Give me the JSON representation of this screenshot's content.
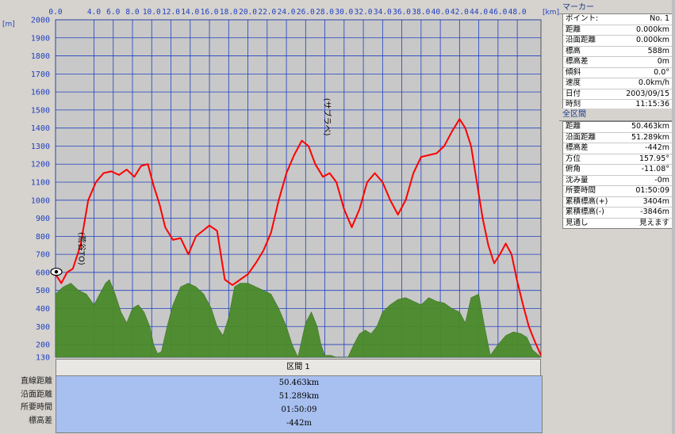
{
  "chart_data": {
    "type": "line",
    "x_unit": "[km]",
    "y_unit": "[m]",
    "x_ticks": [
      "0.0",
      "4.0",
      "6.0",
      "8.0",
      "10.0",
      "12.0",
      "14.0",
      "16.0",
      "18.0",
      "20.0",
      "22.0",
      "24.0",
      "26.0",
      "28.0",
      "30.0",
      "32.0",
      "34.0",
      "36.0",
      "38.0",
      "40.0",
      "42.0",
      "44.0",
      "46.0",
      "48.0"
    ],
    "x_tick_values": [
      0,
      4,
      6,
      8,
      10,
      12,
      14,
      16,
      18,
      20,
      22,
      24,
      26,
      28,
      30,
      32,
      34,
      36,
      38,
      40,
      42,
      44,
      46,
      48
    ],
    "y_ticks": [
      2000,
      1900,
      1800,
      1700,
      1600,
      1500,
      1400,
      1300,
      1200,
      1100,
      1000,
      900,
      800,
      700,
      600,
      500,
      400,
      300,
      200,
      130
    ],
    "xlim": [
      0,
      50.463
    ],
    "ylim": [
      130,
      2000
    ],
    "grid": true,
    "series": [
      {
        "role": "elevation",
        "color": "#ff0000",
        "x": [
          0,
          0.6,
          1.2,
          1.8,
          2.6,
          3.4,
          4.2,
          5.0,
          5.8,
          6.6,
          7.4,
          8.2,
          8.9,
          9.6,
          10.2,
          10.8,
          11.4,
          12.2,
          13.0,
          13.8,
          14.6,
          15.3,
          16.0,
          16.8,
          17.6,
          18.4,
          19.2,
          20.0,
          20.8,
          21.6,
          22.4,
          23.2,
          24.0,
          24.8,
          25.6,
          26.3,
          27.0,
          27.8,
          28.5,
          29.2,
          30.0,
          30.8,
          31.6,
          32.4,
          33.2,
          34.0,
          34.8,
          35.6,
          36.4,
          37.2,
          38.0,
          38.8,
          39.6,
          40.4,
          41.2,
          42.0,
          42.6,
          43.2,
          43.8,
          44.4,
          45.0,
          45.6,
          46.2,
          46.8,
          47.4,
          48.0,
          48.6,
          49.2,
          49.8,
          50.463
        ],
        "y": [
          590,
          540,
          600,
          620,
          750,
          1000,
          1100,
          1150,
          1160,
          1140,
          1170,
          1130,
          1190,
          1200,
          1080,
          980,
          850,
          780,
          790,
          700,
          800,
          830,
          860,
          830,
          560,
          530,
          560,
          590,
          650,
          720,
          820,
          1000,
          1150,
          1250,
          1330,
          1300,
          1200,
          1130,
          1150,
          1100,
          950,
          850,
          950,
          1100,
          1150,
          1100,
          1000,
          920,
          1000,
          1150,
          1240,
          1250,
          1260,
          1300,
          1380,
          1450,
          1400,
          1300,
          1100,
          900,
          750,
          650,
          700,
          760,
          700,
          550,
          420,
          300,
          220,
          140
        ]
      },
      {
        "role": "visibility",
        "color": "#4a8a2a",
        "x": [
          0,
          0.8,
          1.6,
          2.4,
          3.2,
          4.0,
          4.8,
          5.2,
          5.6,
          6.2,
          6.8,
          7.4,
          8.0,
          8.6,
          9.2,
          9.8,
          10.2,
          10.6,
          11.0,
          11.6,
          12.2,
          13.0,
          13.8,
          14.6,
          15.4,
          16.2,
          16.8,
          17.4,
          18.0,
          18.6,
          19.2,
          20.0,
          20.8,
          21.6,
          22.4,
          23.2,
          24.0,
          24.6,
          25.2,
          26.0,
          26.6,
          27.2,
          27.6,
          28.0,
          28.6,
          29.2,
          29.8,
          30.4,
          31.0,
          31.6,
          32.2,
          32.8,
          33.4,
          34.0,
          34.8,
          35.6,
          36.4,
          37.2,
          38.0,
          38.8,
          39.6,
          40.4,
          41.2,
          42.0,
          42.6,
          43.2,
          44.0,
          44.6,
          45.2,
          46.0,
          46.8,
          47.6,
          48.4,
          49.0,
          49.6,
          50.463
        ],
        "y": [
          480,
          520,
          540,
          500,
          480,
          420,
          500,
          540,
          560,
          480,
          380,
          320,
          400,
          420,
          380,
          300,
          200,
          150,
          160,
          300,
          420,
          520,
          540,
          520,
          480,
          400,
          300,
          250,
          350,
          520,
          540,
          540,
          520,
          500,
          480,
          400,
          300,
          200,
          130,
          320,
          380,
          300,
          200,
          140,
          140,
          130,
          130,
          130,
          200,
          260,
          280,
          260,
          300,
          380,
          420,
          450,
          460,
          440,
          420,
          460,
          440,
          430,
          400,
          380,
          320,
          460,
          480,
          300,
          140,
          200,
          250,
          270,
          260,
          240,
          170,
          130
        ]
      }
    ],
    "annotations": [
      {
        "text": "(荒谷TO)",
        "x": 0.8,
        "y": 600
      },
      {
        "text": "(サブラベ)",
        "x": 26.3,
        "y": 1330
      }
    ]
  },
  "marker_panel": {
    "title": "マーカー",
    "rows": [
      {
        "label": "ポイント:",
        "value": "No. 1"
      },
      {
        "label": "距離",
        "value": "0.000km"
      },
      {
        "label": "沿面距離",
        "value": "0.000km"
      },
      {
        "label": "標高",
        "value": "588m"
      },
      {
        "label": "標高差",
        "value": "0m"
      },
      {
        "label": "傾斜",
        "value": "0.0°"
      },
      {
        "label": "速度",
        "value": "0.0km/h"
      },
      {
        "label": "日付",
        "value": "2003/09/15"
      },
      {
        "label": "時刻",
        "value": "11:15:36"
      }
    ]
  },
  "all_panel": {
    "title": "全区間",
    "rows": [
      {
        "label": "距離",
        "value": "50.463km"
      },
      {
        "label": "沿面距離",
        "value": "51.289km"
      },
      {
        "label": "標高差",
        "value": "-442m"
      },
      {
        "label": "方位",
        "value": "157.95°"
      },
      {
        "label": "俯角",
        "value": "-11.08°"
      },
      {
        "label": "沈み量",
        "value": "-0m"
      },
      {
        "label": "所要時間",
        "value": "01:50:09"
      },
      {
        "label": "累積標高(+)",
        "value": "3404m"
      },
      {
        "label": "累積標高(-)",
        "value": "-3846m"
      },
      {
        "label": "見通し",
        "value": "見えます"
      }
    ]
  },
  "summary": {
    "title": "区間 1",
    "labels": [
      "直線距離",
      "沿面距離",
      "所要時間",
      "標高差"
    ],
    "values": [
      "50.463km",
      "51.289km",
      "01:50:09",
      "-442m"
    ]
  },
  "colors": {
    "plot_bg": "#c8c8c8",
    "grid": "#2040c0",
    "axis_text": "#2040c0",
    "summary_bg": "#a8c0f0"
  }
}
